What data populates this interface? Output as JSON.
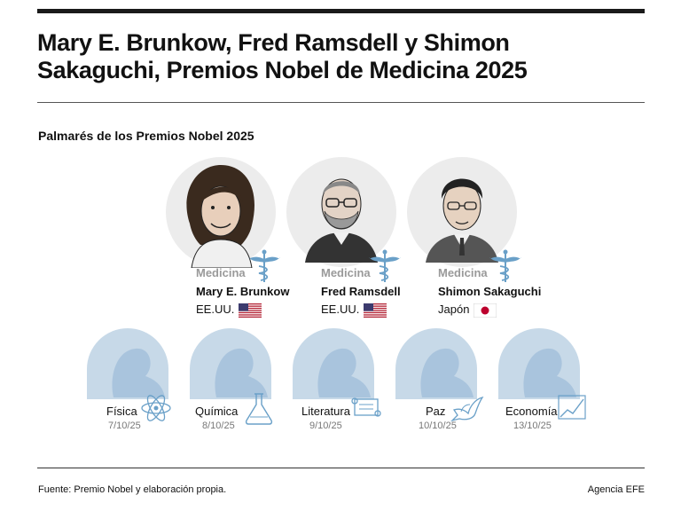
{
  "header": {
    "title_line1": "Mary E. Brunkow, Fred Ramsdell y Shimon",
    "title_line2": "Sakaguchi, Premios Nobel de Medicina 2025",
    "subtitle": "Palmarés de los Premios Nobel 2025"
  },
  "laureates": [
    {
      "field": "Medicina",
      "name": "Mary E. Brunkow",
      "country": "EE.UU.",
      "flag": "usa-flag",
      "icon": "caduceus-icon"
    },
    {
      "field": "Medicina",
      "name": "Fred Ramsdell",
      "country": "EE.UU.",
      "flag": "usa-flag",
      "icon": "caduceus-icon"
    },
    {
      "field": "Medicina",
      "name": "Shimon Sakaguchi",
      "country": "Japón",
      "flag": "japan-flag",
      "icon": "caduceus-icon"
    }
  ],
  "categories": [
    {
      "name": "Física",
      "date": "7/10/25",
      "icon": "atom-icon"
    },
    {
      "name": "Química",
      "date": "8/10/25",
      "icon": "flask-icon"
    },
    {
      "name": "Literatura",
      "date": "9/10/25",
      "icon": "scroll-icon"
    },
    {
      "name": "Paz",
      "date": "10/10/25",
      "icon": "dove-icon"
    },
    {
      "name": "Economía",
      "date": "13/10/25",
      "icon": "chart-icon"
    }
  ],
  "footer": {
    "source": "Fuente: Premio Nobel y elaboración propia.",
    "agency": "Agencia EFE"
  },
  "colors": {
    "silhouette_bg": "#c7d9e8",
    "silhouette_fg": "#a9c4dd",
    "icon_blue": "#6aa0c8",
    "portrait_bg": "#ededed",
    "field_gray": "#9a9a9a"
  }
}
